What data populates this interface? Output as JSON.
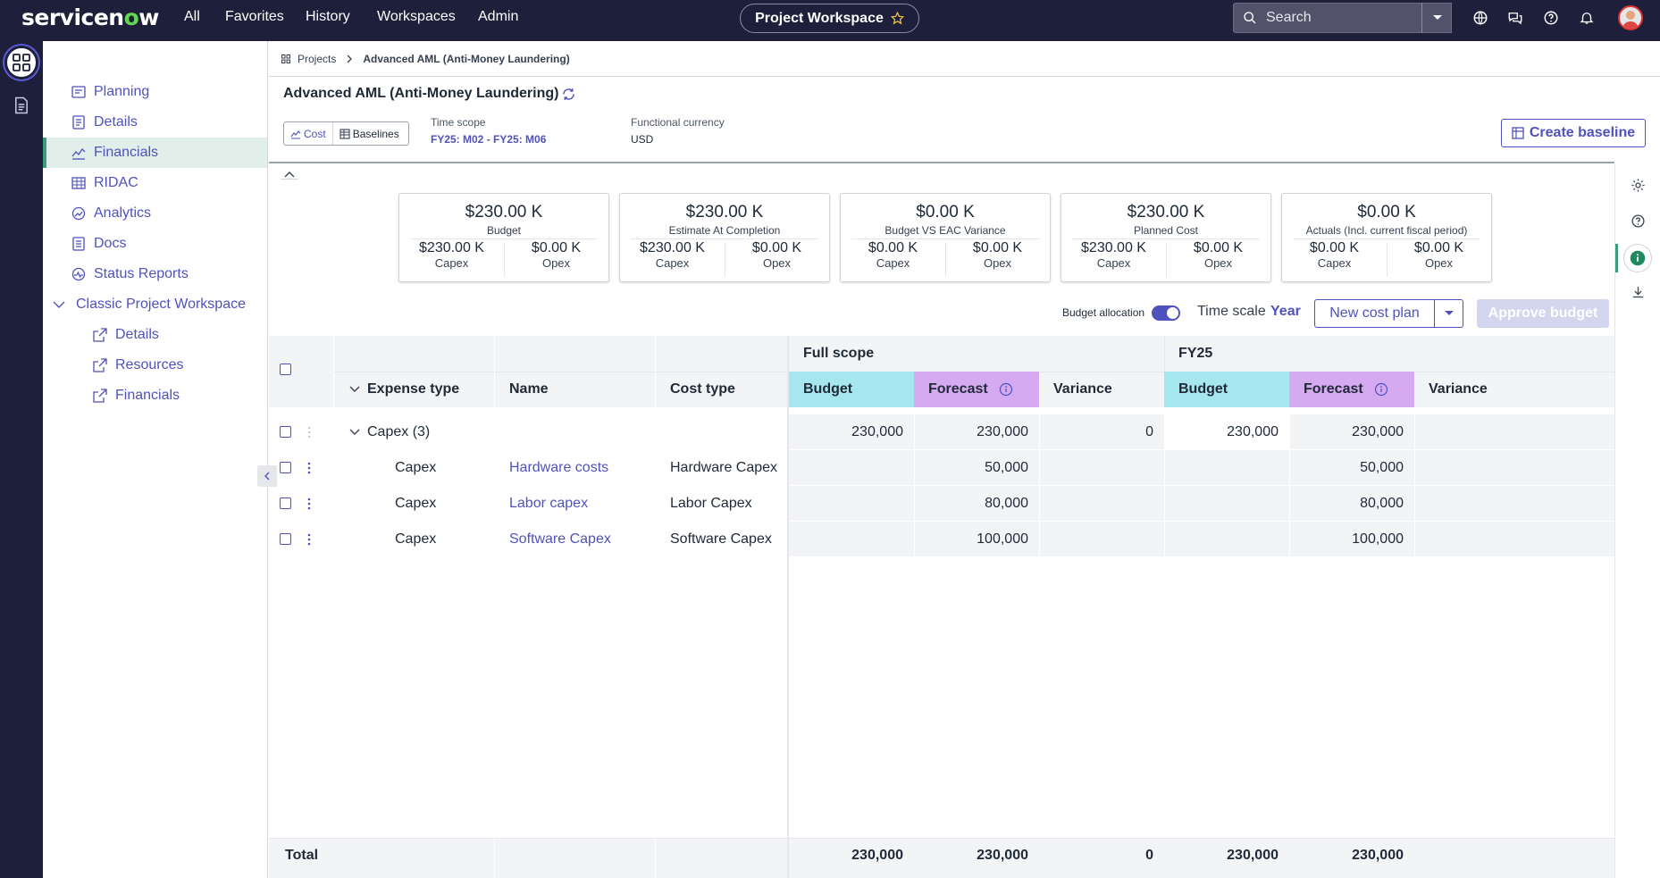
{
  "topnav": {
    "logo": {
      "pre": "servicen",
      "o": "o",
      "post": "w"
    },
    "links": [
      "All",
      "Favorites",
      "History",
      "Workspaces",
      "Admin"
    ],
    "workspace": "Project Workspace",
    "search_placeholder": "Search"
  },
  "sidebar": {
    "items": [
      {
        "label": "Planning",
        "icon": "planning-icon"
      },
      {
        "label": "Details",
        "icon": "details-icon"
      },
      {
        "label": "Financials",
        "icon": "financials-icon",
        "active": true
      },
      {
        "label": "RIDAC",
        "icon": "ridac-icon"
      },
      {
        "label": "Analytics",
        "icon": "analytics-icon"
      },
      {
        "label": "Docs",
        "icon": "docs-icon"
      },
      {
        "label": "Status Reports",
        "icon": "status-reports-icon"
      }
    ],
    "group": {
      "label": "Classic Project Workspace",
      "items": [
        "Details",
        "Resources",
        "Financials"
      ]
    }
  },
  "breadcrumb": {
    "root": "Projects",
    "current": "Advanced AML (Anti-Money Laundering)"
  },
  "header": {
    "title": "Advanced AML (Anti-Money Laundering)",
    "tabs": [
      "Cost",
      "Baselines"
    ],
    "time_scope_label": "Time scope",
    "time_scope_value": "FY25: M02 - FY25: M06",
    "currency_label": "Functional currency",
    "currency_value": "USD",
    "create_baseline": "Create baseline"
  },
  "kpis": [
    {
      "value": "$230.00 K",
      "label": "Budget",
      "capex": "$230.00 K",
      "opex": "$0.00 K"
    },
    {
      "value": "$230.00 K",
      "label": "Estimate At Completion",
      "capex": "$230.00 K",
      "opex": "$0.00 K"
    },
    {
      "value": "$0.00 K",
      "label": "Budget VS EAC Variance",
      "capex": "$0.00 K",
      "opex": "$0.00 K"
    },
    {
      "value": "$230.00 K",
      "label": "Planned Cost",
      "capex": "$230.00 K",
      "opex": "$0.00 K"
    },
    {
      "value": "$0.00 K",
      "label": "Actuals (Incl. current fiscal period)",
      "capex": "$0.00 K",
      "opex": "$0.00 K"
    }
  ],
  "kpi_sub_labels": {
    "capex": "Capex",
    "opex": "Opex"
  },
  "toolbar": {
    "budget_allocation": "Budget allocation",
    "budget_allocation_on": true,
    "time_scale_label": "Time scale",
    "time_scale_value": "Year",
    "new_cost_plan": "New cost plan",
    "approve_budget": "Approve budget"
  },
  "grid": {
    "col_headers": {
      "expense_type": "Expense type",
      "name": "Name",
      "cost_type": "Cost type"
    },
    "groups": [
      "Full scope",
      "FY25"
    ],
    "sub_headers": [
      "Budget",
      "Forecast",
      "Variance"
    ],
    "group_row": {
      "label": "Capex (3)",
      "full_budget": "230,000",
      "full_forecast": "230,000",
      "full_variance": "0",
      "fy_budget": "230,000",
      "fy_forecast": "230,000"
    },
    "rows": [
      {
        "expense_type": "Capex",
        "name": "Hardware costs",
        "cost_type": "Hardware Capex",
        "full_forecast": "50,000",
        "fy_forecast": "50,000"
      },
      {
        "expense_type": "Capex",
        "name": "Labor capex",
        "cost_type": "Labor Capex",
        "full_forecast": "80,000",
        "fy_forecast": "80,000"
      },
      {
        "expense_type": "Capex",
        "name": "Software Capex",
        "cost_type": "Software Capex",
        "full_forecast": "100,000",
        "fy_forecast": "100,000"
      }
    ],
    "total": {
      "label": "Total",
      "full_budget": "230,000",
      "full_forecast": "230,000",
      "full_variance": "0",
      "fy_budget": "230,000",
      "fy_forecast": "230,000"
    }
  },
  "colors": {
    "accent": "#4f52bd",
    "nav_bg": "#1e1f3b",
    "budget_col": "#a6e6ee",
    "forecast_col": "#d5aaf0",
    "active_bg": "#e1eee9"
  }
}
